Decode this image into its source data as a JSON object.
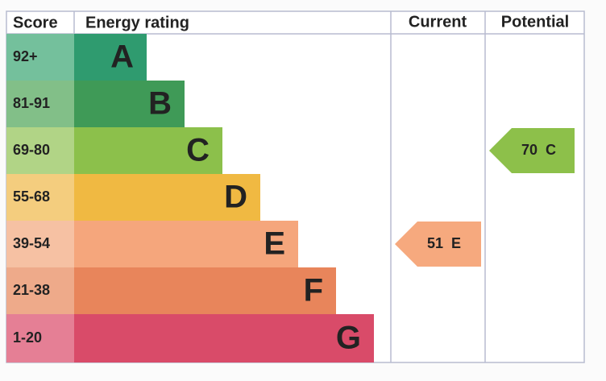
{
  "header": {
    "score": "Score",
    "rating": "Energy rating",
    "current": "Current",
    "potential": "Potential"
  },
  "rows": [
    {
      "score": "92+",
      "letter": "A",
      "color": "#2f9b6f",
      "score_color": "#74c09c"
    },
    {
      "score": "81-91",
      "letter": "B",
      "color": "#3f9a57",
      "score_color": "#82bf88"
    },
    {
      "score": "69-80",
      "letter": "C",
      "color": "#8cc04b",
      "score_color": "#b1d486"
    },
    {
      "score": "55-68",
      "letter": "D",
      "color": "#f0b942",
      "score_color": "#f4cd7e"
    },
    {
      "score": "39-54",
      "letter": "E",
      "color": "#f5a67c",
      "score_color": "#f6c1a3"
    },
    {
      "score": "21-38",
      "letter": "F",
      "color": "#e8855b",
      "score_color": "#eeaa8a"
    },
    {
      "score": "1-20",
      "letter": "G",
      "color": "#d94b69",
      "score_color": "#e57f95"
    }
  ],
  "current": {
    "value": 51,
    "letter": "E",
    "color": "#f6a97e"
  },
  "potential": {
    "value": 70,
    "letter": "C",
    "color": "#8dc04a"
  }
}
